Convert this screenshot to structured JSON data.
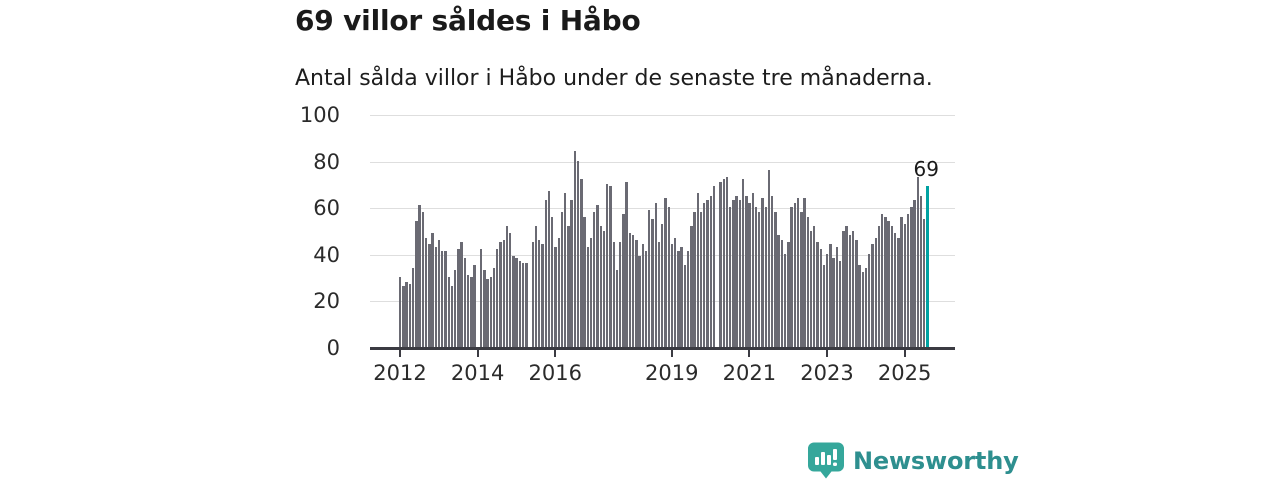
{
  "header": {
    "title": "69 villor såldes i Håbo",
    "subtitle": "Antal sålda villor i Håbo under de senaste tre månaderna."
  },
  "chart_data": {
    "type": "bar",
    "title": "69 villor såldes i Håbo",
    "subtitle": "Antal sålda villor i Håbo under de senaste tre månaderna.",
    "x_start": "2012-01",
    "x_end": "2025-08",
    "x_frequency": "monthly",
    "values": [
      30,
      26,
      28,
      27,
      34,
      54,
      61,
      58,
      47,
      44,
      49,
      43,
      46,
      41,
      41,
      30,
      26,
      33,
      42,
      45,
      38,
      31,
      30,
      35,
      0,
      42,
      33,
      29,
      30,
      34,
      42,
      45,
      46,
      52,
      49,
      39,
      38,
      37,
      36,
      36,
      0,
      45,
      52,
      46,
      44,
      63,
      67,
      56,
      43,
      47,
      58,
      66,
      52,
      63,
      84,
      80,
      72,
      56,
      43,
      47,
      58,
      61,
      52,
      50,
      70,
      69,
      45,
      33,
      45,
      57,
      71,
      49,
      48,
      46,
      39,
      44,
      41,
      59,
      55,
      62,
      45,
      53,
      64,
      60,
      44,
      47,
      41,
      43,
      35,
      41,
      52,
      58,
      66,
      58,
      62,
      63,
      65,
      69,
      0,
      71,
      72,
      73,
      60,
      63,
      65,
      63,
      72,
      65,
      62,
      66,
      60,
      58,
      64,
      60,
      76,
      65,
      58,
      48,
      46,
      40,
      45,
      60,
      62,
      64,
      58,
      64,
      56,
      50,
      52,
      45,
      42,
      35,
      40,
      44,
      38,
      43,
      37,
      50,
      52,
      48,
      50,
      46,
      35,
      32,
      34,
      40,
      44,
      47,
      52,
      57,
      56,
      54,
      52,
      49,
      47,
      56,
      53,
      57,
      60,
      63,
      73,
      65,
      55,
      69
    ],
    "highlight_last": true,
    "highlight_label": "69",
    "bar_color": "#6a6a73",
    "highlight_color": "#00a2a2",
    "ylim": [
      0,
      100
    ],
    "y_ticks": [
      "0",
      "20",
      "40",
      "60",
      "80",
      "100"
    ],
    "x_tick_labels": [
      "2012",
      "2014",
      "2016",
      "2019",
      "2021",
      "2023",
      "2025"
    ],
    "x_tick_month_index": [
      0,
      24,
      48,
      84,
      108,
      132,
      156
    ],
    "grid": true,
    "legend": "none",
    "xlabel": "",
    "ylabel": ""
  },
  "footer": {
    "brand": "Newsworthy",
    "brand_text_color": "#2e8f8f",
    "logo_color": "#35a79b"
  }
}
